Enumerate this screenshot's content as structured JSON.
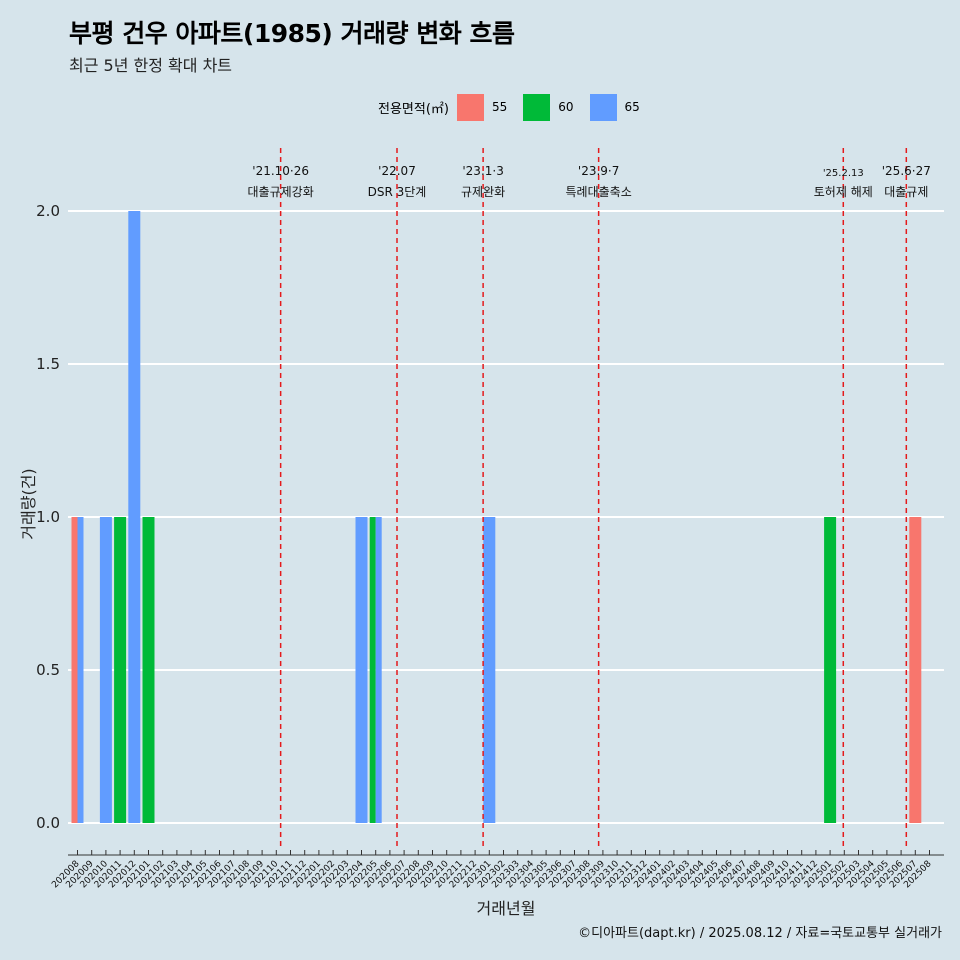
{
  "title": "부평 건우 아파트(1985) 거래량 변화 흐름",
  "subtitle": "최근 5년 한정 확대 차트",
  "caption": "©디아파트(dapt.kr) / 2025.08.12 / 자료=국토교통부 실거래가",
  "legend": {
    "title": "전용면적(㎡)",
    "items": [
      {
        "label": "55",
        "color": "#f8766d"
      },
      {
        "label": "60",
        "color": "#00ba38"
      },
      {
        "label": "65",
        "color": "#619cff"
      }
    ]
  },
  "chart_data": {
    "type": "bar",
    "stacked": false,
    "grouped": true,
    "xlabel": "거래년월",
    "ylabel": "거래량(건)",
    "ylim": [
      0,
      2
    ],
    "yticks": [
      "0.0",
      "0.5",
      "1.0",
      "1.5",
      "2.0"
    ],
    "categories": [
      "202008",
      "202009",
      "202010",
      "202011",
      "202012",
      "202101",
      "202102",
      "202103",
      "202104",
      "202105",
      "202106",
      "202107",
      "202108",
      "202109",
      "202110",
      "202111",
      "202112",
      "202201",
      "202202",
      "202203",
      "202204",
      "202205",
      "202206",
      "202207",
      "202208",
      "202209",
      "202210",
      "202211",
      "202212",
      "202301",
      "202302",
      "202303",
      "202304",
      "202305",
      "202306",
      "202307",
      "202308",
      "202309",
      "202310",
      "202311",
      "202312",
      "202401",
      "202402",
      "202403",
      "202404",
      "202405",
      "202406",
      "202407",
      "202408",
      "202409",
      "202410",
      "202411",
      "202412",
      "202501",
      "202502",
      "202503",
      "202504",
      "202505",
      "202506",
      "202507",
      "202508"
    ],
    "series": [
      {
        "name": "55",
        "color": "#f8766d",
        "data": [
          {
            "x": "202008",
            "y": 1
          },
          {
            "x": "202507",
            "y": 1
          }
        ]
      },
      {
        "name": "60",
        "color": "#00ba38",
        "data": [
          {
            "x": "202011",
            "y": 1
          },
          {
            "x": "202101",
            "y": 1
          },
          {
            "x": "202205",
            "y": 1
          },
          {
            "x": "202501",
            "y": 1
          }
        ]
      },
      {
        "name": "65",
        "color": "#619cff",
        "data": [
          {
            "x": "202008",
            "y": 1
          },
          {
            "x": "202010",
            "y": 1
          },
          {
            "x": "202012",
            "y": 2
          },
          {
            "x": "202204",
            "y": 1
          },
          {
            "x": "202205",
            "y": 1
          },
          {
            "x": "202301",
            "y": 1
          }
        ]
      }
    ],
    "annotations": [
      {
        "x": "2021-10-26",
        "date": "'21.10·26",
        "label": "대출규제강화"
      },
      {
        "x": "2022-07-01",
        "date": "'22.07",
        "label": "DSR 3단계"
      },
      {
        "x": "2023-01-03",
        "date": "'23.1·3",
        "label": "규제완화"
      },
      {
        "x": "2023-09-07",
        "date": "'23.9·7",
        "label": "특례대출축소"
      },
      {
        "x": "2025-02-13",
        "date": "'25.2.13",
        "label": "토허제 해제"
      },
      {
        "x": "2025-06-27",
        "date": "'25.6·27",
        "label": "대출규제"
      }
    ],
    "grid": true,
    "legend_position": "top"
  }
}
